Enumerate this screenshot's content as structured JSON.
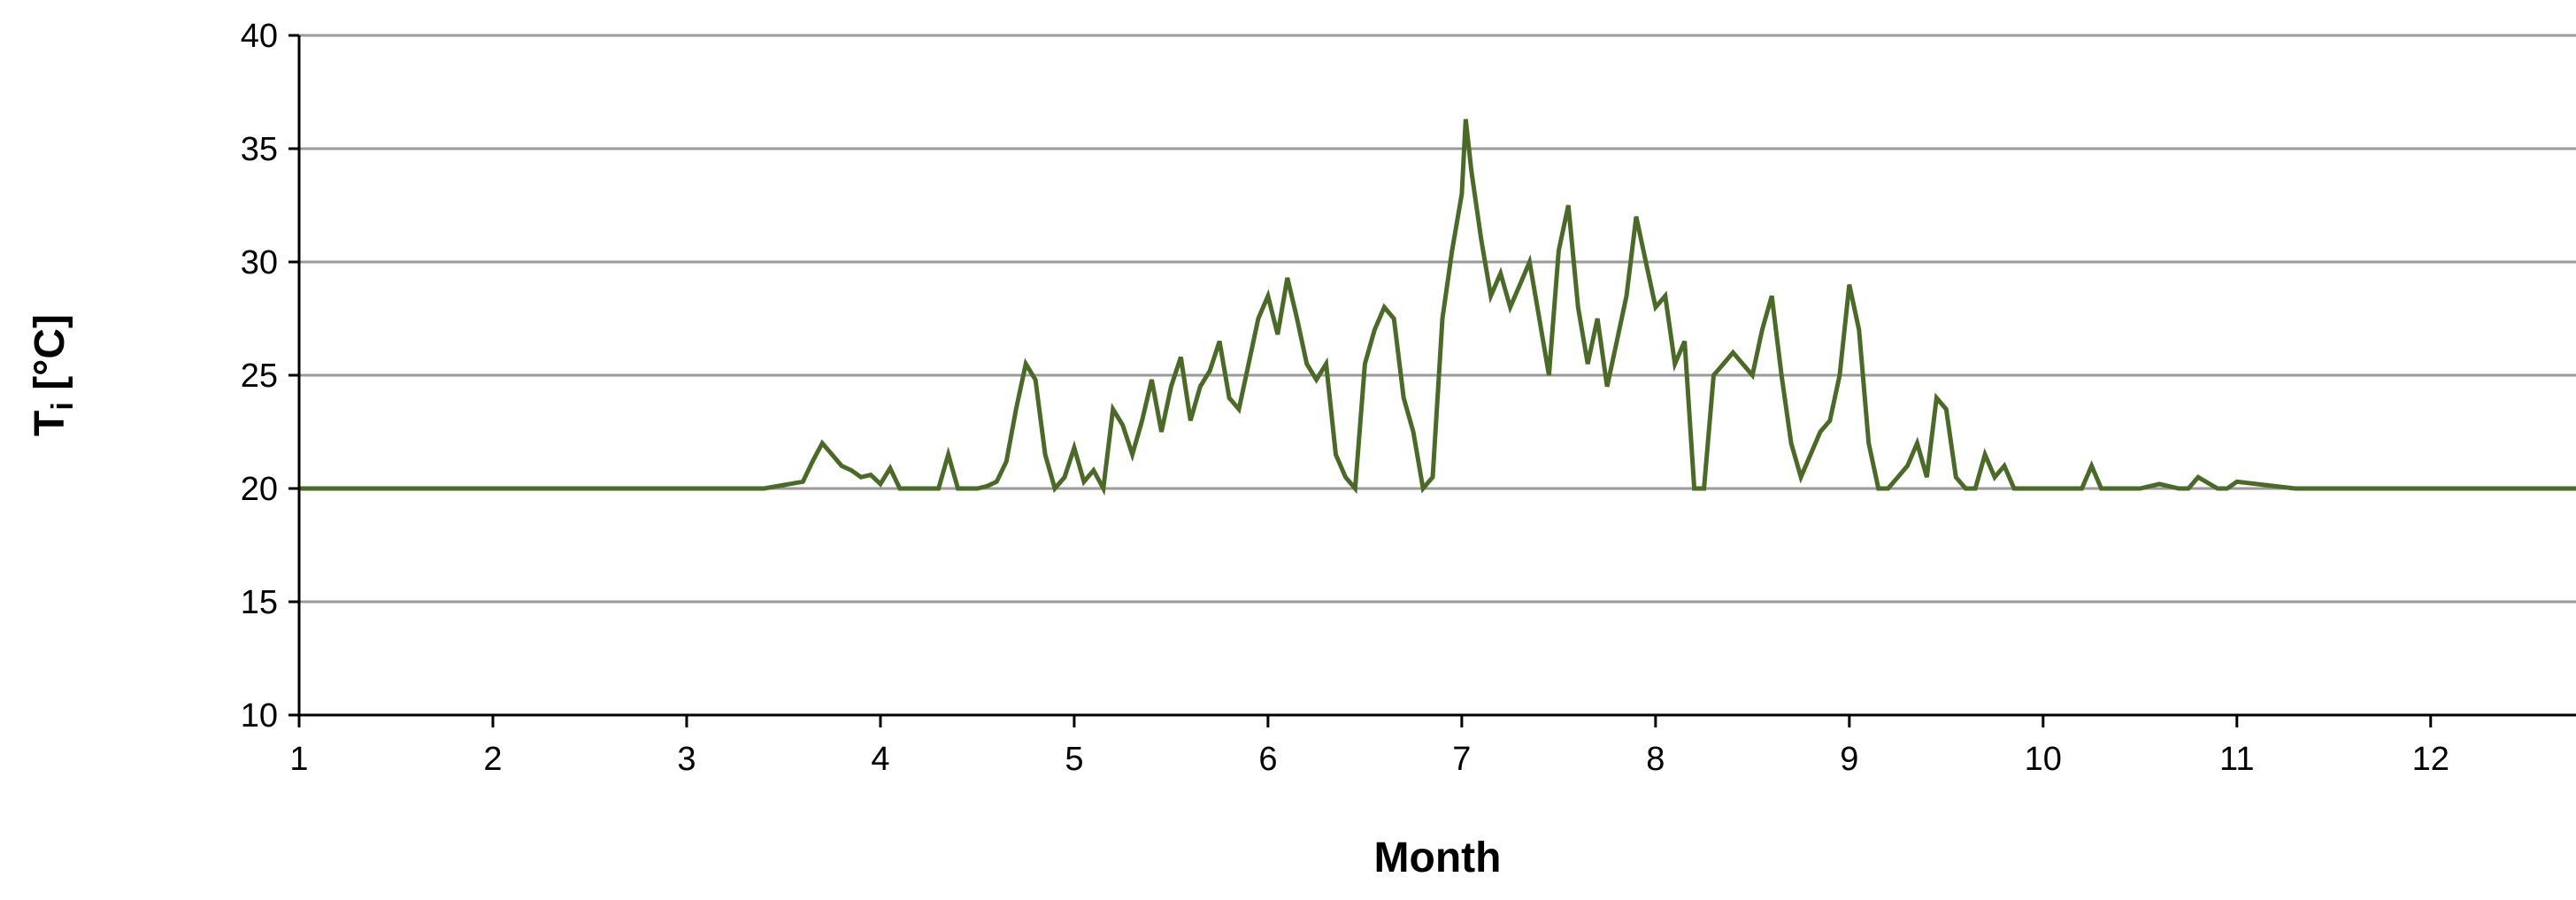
{
  "chart_data": {
    "type": "line",
    "title": "",
    "xlabel": "Month",
    "ylabel": "T",
    "ylabel_subscript": "i",
    "ylabel_unit": " [°C]",
    "xlim": [
      1,
      12.75
    ],
    "ylim": [
      10,
      40
    ],
    "x_ticks": [
      1,
      2,
      3,
      4,
      5,
      6,
      7,
      8,
      9,
      10,
      11,
      12
    ],
    "y_ticks": [
      10,
      15,
      20,
      25,
      30,
      35,
      40
    ],
    "grid": "horizontal",
    "legend": "none",
    "line_color": "#4a6b26",
    "series": [
      {
        "x": [
          1.0,
          1.3,
          1.6,
          1.9,
          2.2,
          2.5,
          2.8,
          3.1,
          3.4,
          3.6,
          3.65,
          3.7,
          3.75,
          3.8,
          3.85,
          3.9,
          3.95,
          4.0,
          4.05,
          4.1,
          4.2,
          4.3,
          4.35,
          4.4,
          4.5,
          4.55,
          4.6,
          4.65,
          4.7,
          4.75,
          4.8,
          4.85,
          4.9,
          4.95,
          5.0,
          5.05,
          5.1,
          5.15,
          5.2,
          5.25,
          5.3,
          5.35,
          5.4,
          5.45,
          5.5,
          5.55,
          5.6,
          5.65,
          5.7,
          5.75,
          5.8,
          5.85,
          5.9,
          5.95,
          6.0,
          6.05,
          6.1,
          6.15,
          6.2,
          6.25,
          6.3,
          6.35,
          6.4,
          6.45,
          6.5,
          6.55,
          6.6,
          6.65,
          6.7,
          6.75,
          6.8,
          6.85,
          6.9,
          6.95,
          7.0,
          7.02,
          7.05,
          7.1,
          7.15,
          7.2,
          7.25,
          7.3,
          7.35,
          7.4,
          7.45,
          7.5,
          7.55,
          7.6,
          7.65,
          7.7,
          7.75,
          7.8,
          7.85,
          7.9,
          7.95,
          8.0,
          8.05,
          8.1,
          8.15,
          8.2,
          8.25,
          8.3,
          8.35,
          8.4,
          8.45,
          8.5,
          8.55,
          8.6,
          8.65,
          8.7,
          8.75,
          8.8,
          8.85,
          8.9,
          8.95,
          9.0,
          9.05,
          9.1,
          9.15,
          9.2,
          9.25,
          9.3,
          9.35,
          9.4,
          9.45,
          9.5,
          9.55,
          9.6,
          9.65,
          9.7,
          9.75,
          9.8,
          9.85,
          9.9,
          10.0,
          10.1,
          10.2,
          10.25,
          10.3,
          10.4,
          10.5,
          10.6,
          10.7,
          10.75,
          10.8,
          10.9,
          10.95,
          11.0,
          11.3,
          11.6,
          12.0,
          12.4,
          12.75
        ],
        "y": [
          20.0,
          20.0,
          20.0,
          20.0,
          20.0,
          20.0,
          20.0,
          20.0,
          20.0,
          20.3,
          21.2,
          22.0,
          21.5,
          21.0,
          20.8,
          20.5,
          20.6,
          20.2,
          20.9,
          20.0,
          20.0,
          20.0,
          21.5,
          20.0,
          20.0,
          20.1,
          20.3,
          21.2,
          23.5,
          25.5,
          24.8,
          21.5,
          20.0,
          20.5,
          21.8,
          20.3,
          20.8,
          20.0,
          23.5,
          22.8,
          21.5,
          23.0,
          24.8,
          22.5,
          24.5,
          25.8,
          23.0,
          24.5,
          25.2,
          26.5,
          24.0,
          23.5,
          25.5,
          27.5,
          28.5,
          26.8,
          29.3,
          27.5,
          25.5,
          24.8,
          25.5,
          21.5,
          20.5,
          20.0,
          25.5,
          27.0,
          28.0,
          27.5,
          24.0,
          22.5,
          20.0,
          20.5,
          27.5,
          30.5,
          33.0,
          36.3,
          34.0,
          31.0,
          28.5,
          29.5,
          28.0,
          29.0,
          30.0,
          27.5,
          25.0,
          30.5,
          32.5,
          28.0,
          25.5,
          27.5,
          24.5,
          26.5,
          28.5,
          32.0,
          30.0,
          28.0,
          28.5,
          25.5,
          26.5,
          20.0,
          20.0,
          25.0,
          25.5,
          26.0,
          25.5,
          25.0,
          27.0,
          28.5,
          25.0,
          22.0,
          20.5,
          21.5,
          22.5,
          23.0,
          25.0,
          29.0,
          27.0,
          22.0,
          20.0,
          20.0,
          20.5,
          21.0,
          22.0,
          20.5,
          24.0,
          23.5,
          20.5,
          20.0,
          20.0,
          21.5,
          20.5,
          21.0,
          20.0,
          20.0,
          20.0,
          20.0,
          20.0,
          21.0,
          20.0,
          20.0,
          20.0,
          20.2,
          20.0,
          20.0,
          20.5,
          20.0,
          20.0,
          20.3,
          20.0,
          20.0,
          20.0,
          20.0,
          20.0
        ]
      }
    ]
  }
}
